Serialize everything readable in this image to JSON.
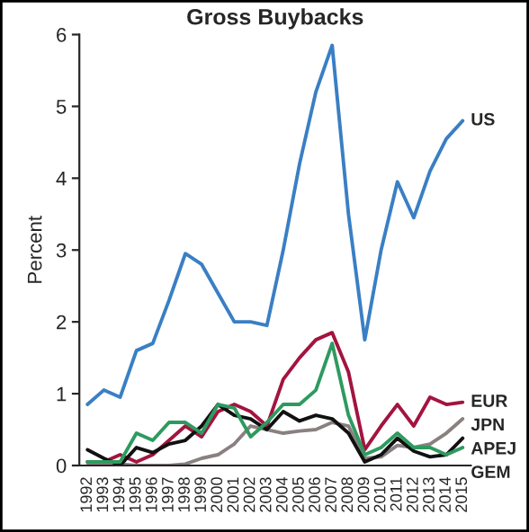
{
  "chart_data": {
    "type": "line",
    "title": "Gross Buybacks",
    "ylabel": "Percent",
    "categories": [
      "1992",
      "1993",
      "1994",
      "1995",
      "1996",
      "1997",
      "1998",
      "1999",
      "2000",
      "2001",
      "2002",
      "2003",
      "2004",
      "2005",
      "2006",
      "2007",
      "2008",
      "2009",
      "2010",
      "2011",
      "2012",
      "2013",
      "2014",
      "2015"
    ],
    "series": [
      {
        "name": "US",
        "color": "#3a7fc4",
        "values": [
          0.85,
          1.05,
          0.95,
          1.6,
          1.7,
          2.3,
          2.95,
          2.8,
          2.4,
          2.0,
          2.0,
          1.95,
          3.0,
          4.2,
          5.2,
          5.85,
          3.5,
          1.75,
          3.0,
          3.95,
          3.45,
          4.1,
          4.55,
          4.8
        ]
      },
      {
        "name": "EUR",
        "color": "#a3143f",
        "values": [
          0.05,
          0.05,
          0.15,
          0.05,
          0.15,
          0.35,
          0.55,
          0.4,
          0.75,
          0.85,
          0.75,
          0.55,
          1.2,
          1.5,
          1.75,
          1.85,
          1.3,
          0.22,
          0.55,
          0.85,
          0.55,
          0.95,
          0.85,
          0.88
        ]
      },
      {
        "name": "JPN",
        "color": "#8a8080",
        "values": [
          0,
          0,
          0.02,
          0,
          0,
          0,
          0.02,
          0.1,
          0.15,
          0.3,
          0.55,
          0.5,
          0.45,
          0.48,
          0.5,
          0.6,
          0.55,
          0.1,
          0.12,
          0.28,
          0.25,
          0.3,
          0.45,
          0.65
        ]
      },
      {
        "name": "APEJ",
        "color": "#111111",
        "values": [
          0.22,
          0.1,
          0.0,
          0.25,
          0.18,
          0.3,
          0.35,
          0.55,
          0.85,
          0.7,
          0.65,
          0.5,
          0.75,
          0.62,
          0.7,
          0.65,
          0.45,
          0.05,
          0.15,
          0.38,
          0.2,
          0.12,
          0.15,
          0.38
        ]
      },
      {
        "name": "GEM",
        "color": "#2e9a5f",
        "values": [
          0.05,
          0.05,
          0.05,
          0.45,
          0.35,
          0.6,
          0.6,
          0.45,
          0.85,
          0.8,
          0.4,
          0.6,
          0.85,
          0.85,
          1.05,
          1.7,
          0.7,
          0.15,
          0.25,
          0.45,
          0.25,
          0.25,
          0.15,
          0.25
        ]
      }
    ],
    "ylim": [
      0,
      6
    ],
    "yticks": [
      0,
      1,
      2,
      3,
      4,
      5,
      6
    ],
    "grid": false,
    "legend": false
  }
}
